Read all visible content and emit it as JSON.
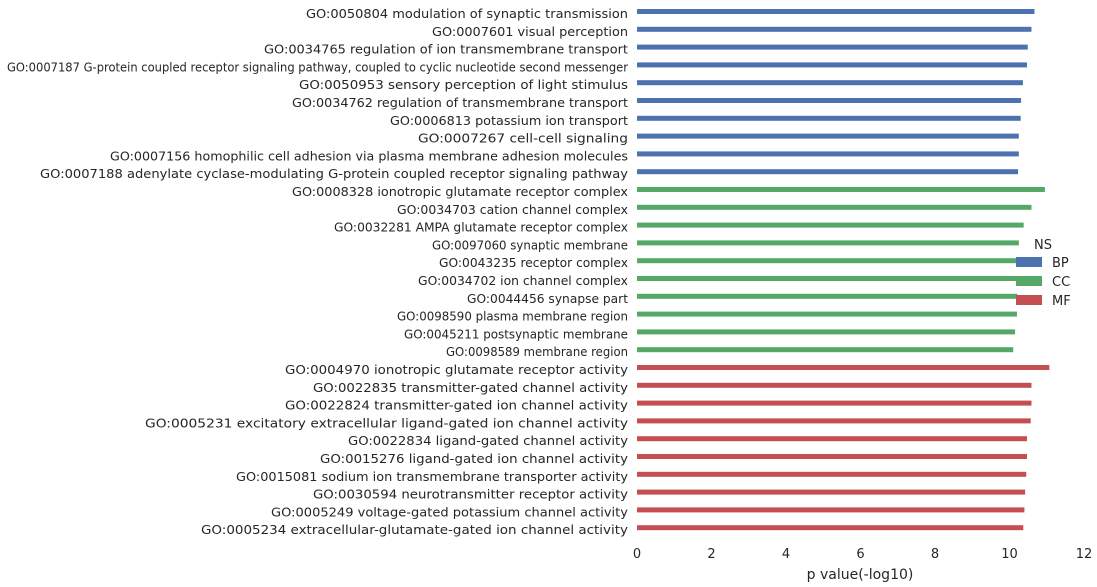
{
  "chart_data": {
    "type": "bar",
    "orientation": "horizontal",
    "title": "",
    "xlabel": "p value(-log10)",
    "ylabel": "",
    "xlim": [
      0,
      12
    ],
    "xticks": [
      0,
      2,
      4,
      6,
      8,
      10,
      12
    ],
    "grid": false,
    "legend": {
      "title": "NS",
      "position": "right",
      "entries": [
        {
          "label": "BP",
          "color": "#4c72b0"
        },
        {
          "label": "CC",
          "color": "#55a868"
        },
        {
          "label": "MF",
          "color": "#c44e52"
        }
      ]
    },
    "categories": [
      "GO:0050804 modulation of synaptic transmission",
      "GO:0007601 visual perception",
      "GO:0034765 regulation of ion transmembrane transport",
      "GO:0007187 G-protein coupled receptor signaling pathway, coupled to cyclic nucleotide second messenger",
      "GO:0050953 sensory perception of light stimulus",
      "GO:0034762 regulation of transmembrane transport",
      "GO:0006813 potassium ion transport",
      "GO:0007267 cell-cell signaling",
      "GO:0007156 homophilic cell adhesion via plasma membrane adhesion molecules",
      "GO:0007188 adenylate cyclase-modulating G-protein coupled receptor signaling pathway",
      "GO:0008328 ionotropic glutamate receptor complex",
      "GO:0034703 cation channel complex",
      "GO:0032281 AMPA glutamate receptor complex",
      "GO:0097060 synaptic membrane",
      "GO:0043235 receptor complex",
      "GO:0034702 ion channel complex",
      "GO:0044456 synapse part",
      "GO:0098590 plasma membrane region",
      "GO:0045211 postsynaptic membrane",
      "GO:0098589 membrane region",
      "GO:0004970 ionotropic glutamate receptor activity",
      "GO:0022835 transmitter-gated channel activity",
      "GO:0022824 transmitter-gated ion channel activity",
      "GO:0005231 excitatory extracellular ligand-gated ion channel activity",
      "GO:0022834 ligand-gated channel activity",
      "GO:0015276 ligand-gated ion channel activity",
      "GO:0015081 sodium ion transmembrane transporter activity",
      "GO:0030594 neurotransmitter receptor activity",
      "GO:0005249 voltage-gated potassium channel activity",
      "GO:0005234 extracellular-glutamate-gated ion channel activity"
    ],
    "values": [
      10.67,
      10.59,
      10.49,
      10.47,
      10.36,
      10.31,
      10.3,
      10.25,
      10.25,
      10.23,
      10.95,
      10.59,
      10.38,
      10.25,
      10.25,
      10.22,
      10.21,
      10.2,
      10.15,
      10.1,
      11.07,
      10.59,
      10.59,
      10.57,
      10.47,
      10.47,
      10.45,
      10.42,
      10.4,
      10.37
    ],
    "groups": [
      "BP",
      "BP",
      "BP",
      "BP",
      "BP",
      "BP",
      "BP",
      "BP",
      "BP",
      "BP",
      "CC",
      "CC",
      "CC",
      "CC",
      "CC",
      "CC",
      "CC",
      "CC",
      "CC",
      "CC",
      "MF",
      "MF",
      "MF",
      "MF",
      "MF",
      "MF",
      "MF",
      "MF",
      "MF",
      "MF"
    ]
  }
}
